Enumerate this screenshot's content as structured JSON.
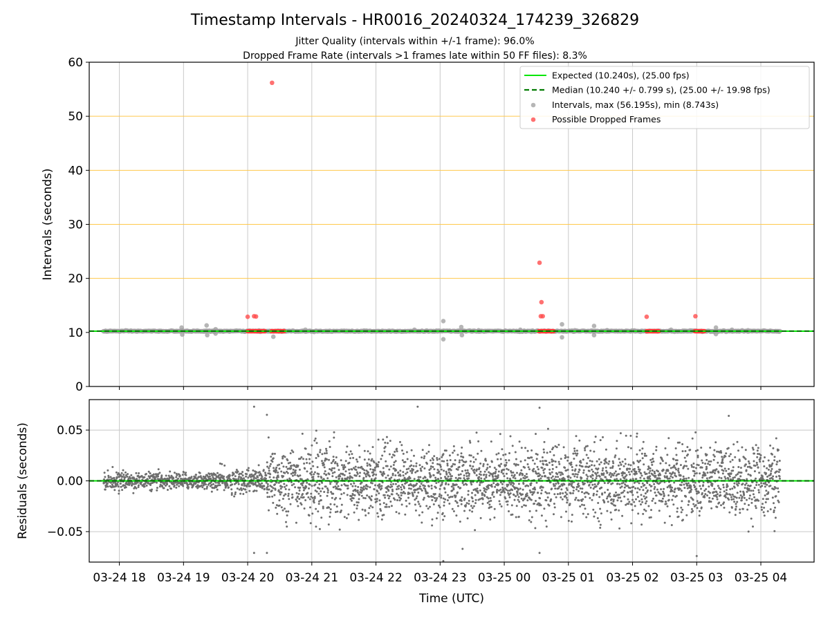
{
  "chart_data": [
    {
      "type": "scatter",
      "title": "Timestamp Intervals - HR0016_20240324_174239_326829",
      "subtitle_lines": [
        "Jitter Quality (intervals within +/-1 frame): 96.0%",
        "Dropped Frame Rate (intervals >1 frames late within 50 FF files): 8.3%"
      ],
      "ylabel": "Intervals (seconds)",
      "ylim": [
        0,
        60
      ],
      "yticks": [
        "0",
        "10",
        "20",
        "30",
        "40",
        "50",
        "60"
      ],
      "xlim_hours": [
        17.53,
        28.83
      ],
      "xticks": [
        {
          "hour": 18,
          "label": "03-24 18"
        },
        {
          "hour": 19,
          "label": "03-24 19"
        },
        {
          "hour": 20,
          "label": "03-24 20"
        },
        {
          "hour": 21,
          "label": "03-24 21"
        },
        {
          "hour": 22,
          "label": "03-24 22"
        },
        {
          "hour": 23,
          "label": "03-24 23"
        },
        {
          "hour": 24,
          "label": "03-25 00"
        },
        {
          "hour": 25,
          "label": "03-25 01"
        },
        {
          "hour": 26,
          "label": "03-25 02"
        },
        {
          "hour": 27,
          "label": "03-25 03"
        },
        {
          "hour": 28,
          "label": "03-25 04"
        }
      ],
      "grid": true,
      "horizontal_reference_lines": [
        20,
        30,
        40,
        50,
        60
      ],
      "legend": {
        "placement": "upper right",
        "entries": [
          {
            "label": "Expected (10.240s), (25.00 fps)",
            "style": "solid line",
            "color": "#00e600"
          },
          {
            "label": "Median (10.240 +/- 0.799 s), (25.00 +/- 19.98 fps)",
            "style": "dashed line",
            "color": "#007a00"
          },
          {
            "label": "Intervals, max (56.195s), min (8.743s)",
            "style": "dot",
            "color": "#9e9e9e"
          },
          {
            "label": "Possible Dropped Frames",
            "style": "dot",
            "color": "#ff4d4d"
          }
        ]
      },
      "expected_interval": 10.24,
      "median_interval": 10.24,
      "series": [
        {
          "name": "Intervals, max (56.195s), min (8.743s)",
          "color": "#9e9e9e",
          "baseline": 10.24,
          "x_range_hours": [
            17.75,
            28.3
          ],
          "outliers": [
            {
              "x": 18.97,
              "y": 10.9
            },
            {
              "x": 18.98,
              "y": 9.6
            },
            {
              "x": 19.36,
              "y": 11.3
            },
            {
              "x": 19.37,
              "y": 9.5
            },
            {
              "x": 19.5,
              "y": 10.6
            },
            {
              "x": 19.5,
              "y": 9.8
            },
            {
              "x": 20.4,
              "y": 9.2
            },
            {
              "x": 20.9,
              "y": 10.5
            },
            {
              "x": 22.6,
              "y": 10.5
            },
            {
              "x": 23.05,
              "y": 12.1
            },
            {
              "x": 23.05,
              "y": 8.743
            },
            {
              "x": 23.33,
              "y": 11.0
            },
            {
              "x": 23.34,
              "y": 9.5
            },
            {
              "x": 23.6,
              "y": 10.4
            },
            {
              "x": 24.25,
              "y": 10.5
            },
            {
              "x": 24.9,
              "y": 11.5
            },
            {
              "x": 24.9,
              "y": 9.1
            },
            {
              "x": 25.1,
              "y": 10.4
            },
            {
              "x": 25.4,
              "y": 11.2
            },
            {
              "x": 25.4,
              "y": 9.5
            },
            {
              "x": 25.6,
              "y": 10.4
            },
            {
              "x": 26.6,
              "y": 10.5
            },
            {
              "x": 27.3,
              "y": 10.9
            },
            {
              "x": 27.3,
              "y": 9.7
            },
            {
              "x": 27.55,
              "y": 10.5
            },
            {
              "x": 27.8,
              "y": 10.4
            }
          ]
        },
        {
          "name": "Possible Dropped Frames",
          "color": "#ff4d4d",
          "clusters": [
            {
              "x_from": 20.0,
              "x_to": 20.28,
              "y": 10.24
            },
            {
              "x_from": 20.37,
              "y_unused": null,
              "x_to": 20.58,
              "y": 10.24
            },
            {
              "x_from": 24.54,
              "x_to": 24.78,
              "y": 10.24
            },
            {
              "x_from": 26.22,
              "x_to": 26.42,
              "y": 10.24
            },
            {
              "x_from": 26.97,
              "x_to": 27.13,
              "y": 10.24
            }
          ],
          "points": [
            {
              "x": 20.0,
              "y": 12.9
            },
            {
              "x": 20.1,
              "y": 13.0
            },
            {
              "x": 20.13,
              "y": 12.95
            },
            {
              "x": 20.38,
              "y": 56.195
            },
            {
              "x": 24.55,
              "y": 22.9
            },
            {
              "x": 24.58,
              "y": 15.6
            },
            {
              "x": 24.57,
              "y": 13.0
            },
            {
              "x": 24.6,
              "y": 13.0
            },
            {
              "x": 26.22,
              "y": 12.9
            },
            {
              "x": 26.98,
              "y": 13.0
            }
          ]
        }
      ]
    },
    {
      "type": "scatter",
      "ylabel": "Residuals (seconds)",
      "xlabel": "Time (UTC)",
      "ylim": [
        -0.08,
        0.08
      ],
      "yticks": [
        {
          "value": 0.05,
          "label": "0.05"
        },
        {
          "value": 0.0,
          "label": "0.00"
        },
        {
          "value": -0.05,
          "label": "−0.05"
        }
      ],
      "xlim_hours": [
        17.53,
        28.83
      ],
      "grid": true,
      "zero_line": 0,
      "series": [
        {
          "name": "",
          "color": "#6e6e6e",
          "x_range_hours": [
            17.75,
            28.3
          ],
          "spread_segments": [
            {
              "x_from": 17.75,
              "x_to": 19.5,
              "sigma": 0.004
            },
            {
              "x_from": 19.5,
              "x_to": 20.3,
              "sigma": 0.006
            },
            {
              "x_from": 20.3,
              "x_to": 28.3,
              "sigma": 0.017
            }
          ],
          "outliers": [
            {
              "x": 20.1,
              "y": 0.073
            },
            {
              "x": 20.3,
              "y": 0.065
            },
            {
              "x": 20.1,
              "y": -0.071
            },
            {
              "x": 20.3,
              "y": -0.071
            },
            {
              "x": 22.65,
              "y": 0.073
            },
            {
              "x": 24.55,
              "y": 0.072
            },
            {
              "x": 24.55,
              "y": -0.071
            },
            {
              "x": 23.35,
              "y": -0.067
            },
            {
              "x": 23.05,
              "y": -0.079
            },
            {
              "x": 27.5,
              "y": 0.064
            },
            {
              "x": 27.0,
              "y": -0.074
            }
          ]
        }
      ]
    }
  ]
}
